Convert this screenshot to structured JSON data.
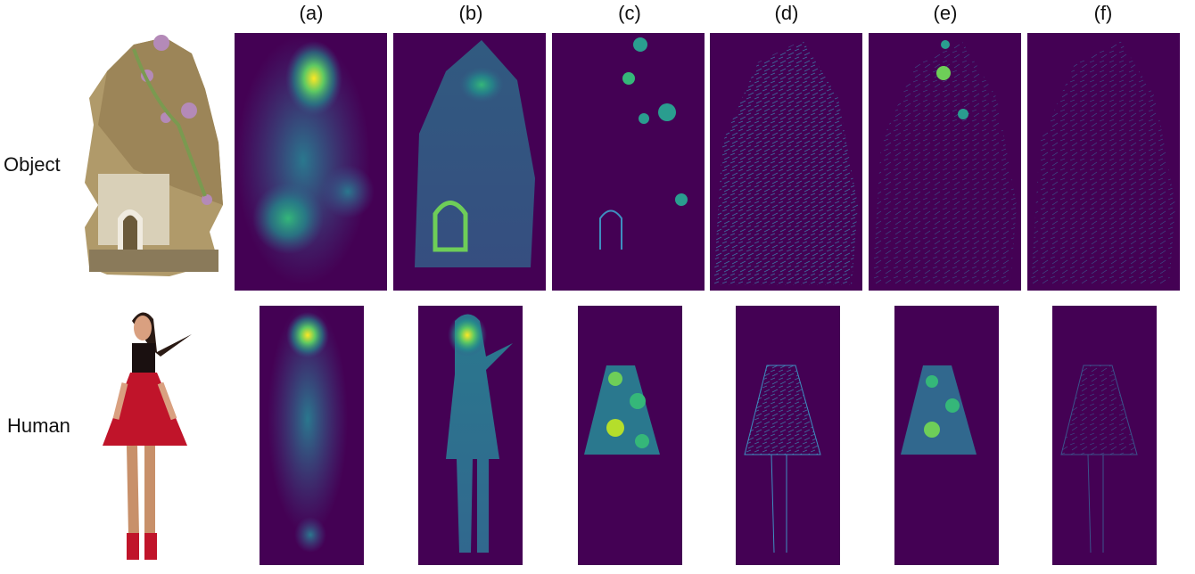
{
  "columns": [
    "(a)",
    "(b)",
    "(c)",
    "(d)",
    "(e)",
    "(f)"
  ],
  "rows": [
    "Object",
    "Human"
  ]
}
